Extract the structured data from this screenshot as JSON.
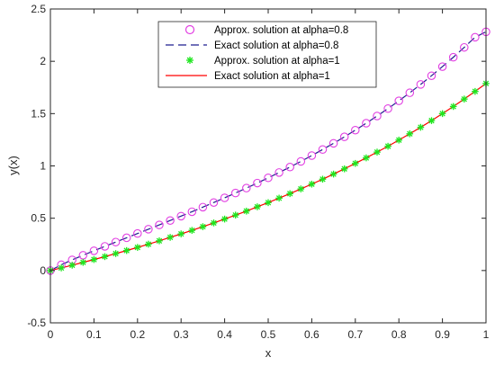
{
  "colors": {
    "background": "#ffffff",
    "axes": "#262626",
    "approx_08": "#e23fe2",
    "exact_08": "#1f1f8f",
    "approx_1": "#1ee61e",
    "exact_1": "#ff0000"
  },
  "chart_data": {
    "type": "line",
    "title": "",
    "xlabel": "x",
    "ylabel": "y(x)",
    "xlim": [
      0,
      1
    ],
    "ylim": [
      -0.5,
      2.5
    ],
    "xticks": [
      0,
      0.1,
      0.2,
      0.3,
      0.4,
      0.5,
      0.6,
      0.7,
      0.8,
      0.9,
      1
    ],
    "xtick_labels": [
      "0",
      "0.1",
      "0.2",
      "0.3",
      "0.4",
      "0.5",
      "0.6",
      "0.7",
      "0.8",
      "0.9",
      "1"
    ],
    "yticks": [
      -0.5,
      0,
      0.5,
      1,
      1.5,
      2,
      2.5
    ],
    "ytick_labels": [
      "-0.5",
      "0",
      "0.5",
      "1",
      "1.5",
      "2",
      "2.5"
    ],
    "grid": false,
    "legend_position": "top-center",
    "series": [
      {
        "name": "Approx. solution at alpha=0.8",
        "style": "markers",
        "marker": "circle",
        "color": "#e23fe2",
        "x": [
          0,
          0.025,
          0.05,
          0.075,
          0.1,
          0.125,
          0.15,
          0.175,
          0.2,
          0.225,
          0.25,
          0.275,
          0.3,
          0.325,
          0.35,
          0.375,
          0.4,
          0.425,
          0.45,
          0.475,
          0.5,
          0.525,
          0.55,
          0.575,
          0.6,
          0.625,
          0.65,
          0.675,
          0.7,
          0.725,
          0.75,
          0.775,
          0.8,
          0.825,
          0.85,
          0.875,
          0.9,
          0.925,
          0.95,
          0.975,
          1
        ],
        "y": [
          0,
          0.055,
          0.102,
          0.146,
          0.189,
          0.231,
          0.272,
          0.313,
          0.354,
          0.395,
          0.436,
          0.478,
          0.52,
          0.562,
          0.606,
          0.65,
          0.695,
          0.741,
          0.788,
          0.836,
          0.886,
          0.937,
          0.989,
          1.043,
          1.099,
          1.157,
          1.216,
          1.278,
          1.342,
          1.408,
          1.477,
          1.548,
          1.622,
          1.699,
          1.779,
          1.862,
          1.949,
          2.039,
          2.133,
          2.23,
          2.282
        ]
      },
      {
        "name": "Exact solution at alpha=0.8",
        "style": "dashed",
        "color": "#1f1f8f",
        "x": [
          0,
          0.025,
          0.05,
          0.075,
          0.1,
          0.125,
          0.15,
          0.175,
          0.2,
          0.225,
          0.25,
          0.275,
          0.3,
          0.325,
          0.35,
          0.375,
          0.4,
          0.425,
          0.45,
          0.475,
          0.5,
          0.525,
          0.55,
          0.575,
          0.6,
          0.625,
          0.65,
          0.675,
          0.7,
          0.725,
          0.75,
          0.775,
          0.8,
          0.825,
          0.85,
          0.875,
          0.9,
          0.925,
          0.95,
          0.975,
          1
        ],
        "y": [
          0,
          0.055,
          0.102,
          0.146,
          0.189,
          0.231,
          0.272,
          0.313,
          0.354,
          0.395,
          0.436,
          0.478,
          0.52,
          0.562,
          0.606,
          0.65,
          0.695,
          0.741,
          0.788,
          0.836,
          0.886,
          0.937,
          0.989,
          1.043,
          1.099,
          1.157,
          1.216,
          1.278,
          1.342,
          1.408,
          1.477,
          1.548,
          1.622,
          1.699,
          1.779,
          1.862,
          1.949,
          2.039,
          2.133,
          2.23,
          2.282
        ]
      },
      {
        "name": "Approx. solution at alpha=1",
        "style": "markers",
        "marker": "asterisk",
        "color": "#1ee61e",
        "x": [
          0,
          0.025,
          0.05,
          0.075,
          0.1,
          0.125,
          0.15,
          0.175,
          0.2,
          0.225,
          0.25,
          0.275,
          0.3,
          0.325,
          0.35,
          0.375,
          0.4,
          0.425,
          0.45,
          0.475,
          0.5,
          0.525,
          0.55,
          0.575,
          0.6,
          0.625,
          0.65,
          0.675,
          0.7,
          0.725,
          0.75,
          0.775,
          0.8,
          0.825,
          0.85,
          0.875,
          0.9,
          0.925,
          0.95,
          0.975,
          1
        ],
        "y": [
          0,
          0.025,
          0.051,
          0.078,
          0.105,
          0.133,
          0.162,
          0.191,
          0.221,
          0.252,
          0.284,
          0.317,
          0.35,
          0.384,
          0.419,
          0.455,
          0.492,
          0.53,
          0.568,
          0.609,
          0.649,
          0.692,
          0.735,
          0.78,
          0.826,
          0.873,
          0.922,
          0.972,
          1.024,
          1.077,
          1.132,
          1.188,
          1.247,
          1.307,
          1.369,
          1.433,
          1.5,
          1.568,
          1.639,
          1.712,
          1.788
        ]
      },
      {
        "name": "Exact solution at alpha=1",
        "style": "solid",
        "color": "#ff0000",
        "x": [
          0,
          0.025,
          0.05,
          0.075,
          0.1,
          0.125,
          0.15,
          0.175,
          0.2,
          0.225,
          0.25,
          0.275,
          0.3,
          0.325,
          0.35,
          0.375,
          0.4,
          0.425,
          0.45,
          0.475,
          0.5,
          0.525,
          0.55,
          0.575,
          0.6,
          0.625,
          0.65,
          0.675,
          0.7,
          0.725,
          0.75,
          0.775,
          0.8,
          0.825,
          0.85,
          0.875,
          0.9,
          0.925,
          0.95,
          0.975,
          1
        ],
        "y": [
          0,
          0.025,
          0.051,
          0.078,
          0.105,
          0.133,
          0.162,
          0.191,
          0.221,
          0.252,
          0.284,
          0.317,
          0.35,
          0.384,
          0.419,
          0.455,
          0.492,
          0.53,
          0.568,
          0.609,
          0.649,
          0.692,
          0.735,
          0.78,
          0.826,
          0.873,
          0.922,
          0.972,
          1.024,
          1.077,
          1.132,
          1.188,
          1.247,
          1.307,
          1.369,
          1.433,
          1.5,
          1.568,
          1.639,
          1.712,
          1.788
        ]
      }
    ]
  }
}
